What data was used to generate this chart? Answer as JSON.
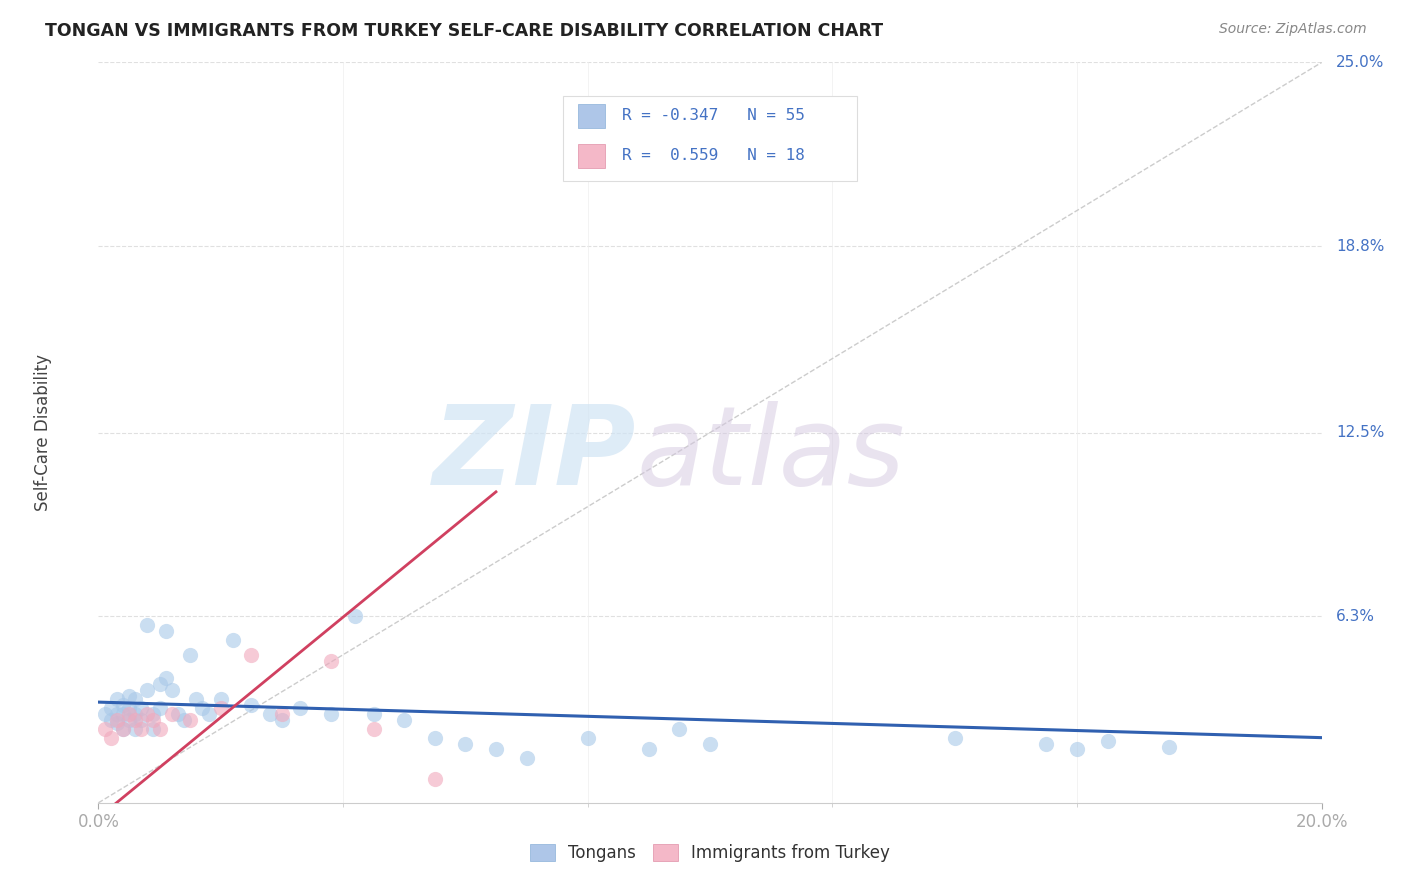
{
  "title": "TONGAN VS IMMIGRANTS FROM TURKEY SELF-CARE DISABILITY CORRELATION CHART",
  "source": "Source: ZipAtlas.com",
  "ylabel": "Self-Care Disability",
  "xlim": [
    0.0,
    0.2
  ],
  "ylim": [
    0.0,
    0.25
  ],
  "background_color": "#ffffff",
  "grid_color": "#e0e0e0",
  "blue_scatter_color": "#a8c8e8",
  "pink_scatter_color": "#f0a8bc",
  "blue_line_color": "#3060b0",
  "pink_line_color": "#d04060",
  "diag_color": "#c0c0c0",
  "label_color": "#4472c4",
  "title_color": "#222222",
  "source_color": "#888888",
  "ytick_positions": [
    0.063,
    0.125,
    0.188,
    0.25
  ],
  "ytick_labels": [
    "6.3%",
    "12.5%",
    "18.8%",
    "25.0%"
  ],
  "tongans_x": [
    0.001,
    0.002,
    0.002,
    0.003,
    0.003,
    0.003,
    0.004,
    0.004,
    0.004,
    0.005,
    0.005,
    0.005,
    0.006,
    0.006,
    0.006,
    0.007,
    0.007,
    0.008,
    0.008,
    0.009,
    0.009,
    0.01,
    0.01,
    0.011,
    0.011,
    0.012,
    0.013,
    0.014,
    0.015,
    0.016,
    0.017,
    0.018,
    0.02,
    0.022,
    0.025,
    0.028,
    0.03,
    0.033,
    0.038,
    0.042,
    0.045,
    0.05,
    0.055,
    0.06,
    0.065,
    0.07,
    0.08,
    0.09,
    0.095,
    0.1,
    0.14,
    0.155,
    0.16,
    0.165,
    0.175
  ],
  "tongans_y": [
    0.03,
    0.028,
    0.032,
    0.027,
    0.03,
    0.035,
    0.025,
    0.03,
    0.033,
    0.028,
    0.032,
    0.036,
    0.025,
    0.03,
    0.035,
    0.028,
    0.032,
    0.038,
    0.06,
    0.025,
    0.03,
    0.04,
    0.032,
    0.058,
    0.042,
    0.038,
    0.03,
    0.028,
    0.05,
    0.035,
    0.032,
    0.03,
    0.035,
    0.055,
    0.033,
    0.03,
    0.028,
    0.032,
    0.03,
    0.063,
    0.03,
    0.028,
    0.022,
    0.02,
    0.018,
    0.015,
    0.022,
    0.018,
    0.025,
    0.02,
    0.022,
    0.02,
    0.018,
    0.021,
    0.019
  ],
  "turkey_x": [
    0.001,
    0.002,
    0.003,
    0.004,
    0.005,
    0.006,
    0.007,
    0.008,
    0.009,
    0.01,
    0.012,
    0.015,
    0.02,
    0.025,
    0.03,
    0.038,
    0.045,
    0.055
  ],
  "turkey_y": [
    0.025,
    0.022,
    0.028,
    0.025,
    0.03,
    0.028,
    0.025,
    0.03,
    0.028,
    0.025,
    0.03,
    0.028,
    0.032,
    0.05,
    0.03,
    0.048,
    0.025,
    0.008
  ],
  "blue_trend_x": [
    0.0,
    0.2
  ],
  "blue_trend_y": [
    0.034,
    0.022
  ],
  "pink_trend_x": [
    0.0,
    0.065
  ],
  "pink_trend_y": [
    -0.005,
    0.105
  ]
}
